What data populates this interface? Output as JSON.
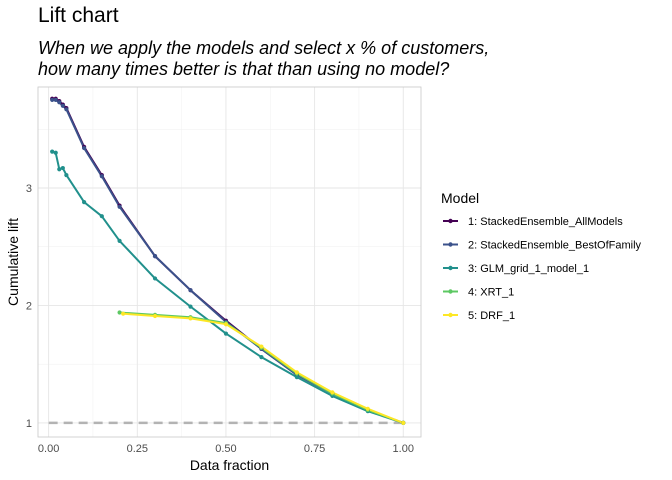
{
  "chart_data": {
    "type": "line",
    "title": "Lift chart",
    "subtitle": "When we apply the models and select x % of customers,\nhow many times better is that than using no model?",
    "xlabel": "Data fraction",
    "ylabel": "Cumulative lift",
    "xlim": [
      -0.03,
      1.05
    ],
    "ylim": [
      0.88,
      3.86
    ],
    "x_ticks": [
      0.0,
      0.25,
      0.5,
      0.75,
      1.0
    ],
    "x_tick_labels": [
      "0.00",
      "0.25",
      "0.50",
      "0.75",
      "1.00"
    ],
    "y_ticks": [
      1,
      2,
      3
    ],
    "y_tick_labels": [
      "1",
      "2",
      "3"
    ],
    "grid": true,
    "legend_title": "Model",
    "legend_position": "right",
    "baseline": {
      "y": 1,
      "style": "dashed",
      "color": "#b3b3b3"
    },
    "series": [
      {
        "name": "1: StackedEnsemble_AllModels",
        "color": "#440154",
        "x": [
          0.01,
          0.02,
          0.03,
          0.04,
          0.05,
          0.1,
          0.15,
          0.2,
          0.3,
          0.4,
          0.5,
          0.6,
          0.7,
          0.8,
          0.9,
          1.0
        ],
        "y": [
          3.76,
          3.76,
          3.74,
          3.71,
          3.68,
          3.35,
          3.11,
          2.85,
          2.42,
          2.13,
          1.87,
          1.63,
          1.41,
          1.25,
          1.11,
          1.0
        ]
      },
      {
        "name": "2: StackedEnsemble_BestOfFamily",
        "color": "#3b528b",
        "x": [
          0.01,
          0.02,
          0.03,
          0.04,
          0.05,
          0.1,
          0.15,
          0.2,
          0.3,
          0.4,
          0.5,
          0.6,
          0.7,
          0.8,
          0.9,
          1.0
        ],
        "y": [
          3.75,
          3.75,
          3.73,
          3.7,
          3.67,
          3.34,
          3.1,
          2.84,
          2.42,
          2.13,
          1.86,
          1.63,
          1.41,
          1.25,
          1.11,
          1.0
        ]
      },
      {
        "name": "3: GLM_grid_1_model_1",
        "color": "#21908c",
        "x": [
          0.01,
          0.02,
          0.03,
          0.04,
          0.05,
          0.1,
          0.15,
          0.2,
          0.3,
          0.4,
          0.5,
          0.6,
          0.7,
          0.8,
          0.9,
          1.0
        ],
        "y": [
          3.31,
          3.3,
          3.16,
          3.17,
          3.11,
          2.88,
          2.76,
          2.55,
          2.23,
          1.99,
          1.76,
          1.56,
          1.39,
          1.23,
          1.1,
          1.0
        ]
      },
      {
        "name": "4: XRT_1",
        "color": "#5dc863",
        "x": [
          0.2,
          0.3,
          0.4,
          0.5,
          0.6,
          0.7,
          0.8,
          0.9,
          1.0
        ],
        "y": [
          1.94,
          1.92,
          1.9,
          1.85,
          1.64,
          1.42,
          1.25,
          1.11,
          1.0
        ]
      },
      {
        "name": "5: DRF_1",
        "color": "#fde725",
        "x": [
          0.21,
          0.3,
          0.4,
          0.5,
          0.6,
          0.7,
          0.8,
          0.9,
          1.0
        ],
        "y": [
          1.93,
          1.91,
          1.89,
          1.84,
          1.65,
          1.43,
          1.26,
          1.12,
          1.0
        ]
      }
    ]
  }
}
